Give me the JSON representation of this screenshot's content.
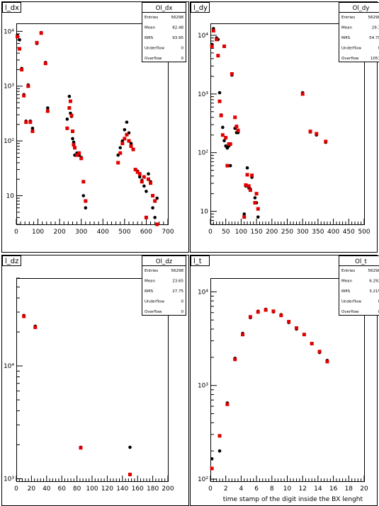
{
  "chart_data": [
    {
      "type": "scatter",
      "title": "l_dx",
      "xlabel": "",
      "ylabel": "",
      "xlim": [
        0,
        700
      ],
      "ylim": [
        3,
        14000
      ],
      "yscale": "log",
      "x_ticks": [
        0,
        100,
        200,
        300,
        400,
        500,
        600,
        700
      ],
      "y_ticks": [
        10,
        100,
        1000,
        10000
      ],
      "y_tick_labels": [
        "10",
        "10²",
        "10³",
        "10⁴"
      ],
      "stats": {
        "name": "Ol_dx",
        "rows": [
          {
            "label": "Entries",
            "value": "56298"
          },
          {
            "label": "Mean",
            "value": "82.48"
          },
          {
            "label": "RMS",
            "value": "93.95"
          },
          {
            "label": "Underflow",
            "value": "0"
          },
          {
            "label": "Overflow",
            "value": "0"
          }
        ]
      },
      "series": [
        {
          "color": "#000000",
          "x": [
            5,
            15,
            25,
            35,
            45,
            55,
            65,
            75,
            95,
            115,
            135,
            145,
            235,
            245,
            250,
            255,
            260,
            265,
            270,
            280,
            290,
            300,
            310,
            320,
            330,
            470,
            480,
            490,
            500,
            510,
            520,
            530,
            560,
            570,
            580,
            590,
            600,
            610,
            620,
            630,
            640,
            650
          ],
          "y": [
            8500,
            7000,
            2100,
            700,
            230,
            1050,
            230,
            170,
            6000,
            9500,
            2700,
            400,
            250,
            650,
            320,
            280,
            110,
            95,
            55,
            60,
            55,
            50,
            10,
            6,
            null,
            55,
            75,
            100,
            160,
            220,
            140,
            90,
            28,
            22,
            19,
            15,
            12,
            25,
            18,
            6,
            4,
            9
          ]
        },
        {
          "color": "#e00000",
          "x": [
            5,
            15,
            25,
            35,
            45,
            55,
            65,
            75,
            95,
            115,
            135,
            145,
            235,
            245,
            250,
            255,
            260,
            265,
            270,
            280,
            290,
            300,
            310,
            320,
            330,
            470,
            480,
            490,
            500,
            510,
            520,
            530,
            540,
            550,
            560,
            570,
            580,
            590,
            600,
            610,
            620,
            630,
            640,
            650
          ],
          "y": [
            8000,
            4800,
            2000,
            670,
            220,
            1000,
            220,
            150,
            6200,
            9300,
            2600,
            350,
            170,
            400,
            530,
            290,
            150,
            85,
            75,
            55,
            60,
            48,
            18,
            8,
            null,
            40,
            60,
            90,
            110,
            130,
            100,
            80,
            70,
            30,
            27,
            25,
            18,
            22,
            4,
            20,
            17,
            10,
            8,
            3
          ]
        }
      ]
    },
    {
      "type": "scatter",
      "title": "l_dy",
      "xlabel": "",
      "ylabel": "",
      "xlim": [
        0,
        500
      ],
      "ylim": [
        6,
        16000
      ],
      "yscale": "log",
      "x_ticks": [
        0,
        50,
        100,
        150,
        200,
        250,
        300,
        350,
        400,
        450,
        500
      ],
      "y_ticks": [
        10,
        100,
        1000,
        10000
      ],
      "y_tick_labels": [
        "10",
        "10²",
        "10³",
        "10⁴"
      ],
      "stats": {
        "name": "Ol_dy",
        "rows": [
          {
            "label": "Entries",
            "value": "56298"
          },
          {
            "label": "Mean",
            "value": "29.1"
          },
          {
            "label": "RMS",
            "value": "54.79"
          },
          {
            "label": "Underflow",
            "value": "0"
          },
          {
            "label": "Overflow",
            "value": "1051"
          }
        ]
      },
      "series": [
        {
          "color": "#000000",
          "x": [
            5,
            10,
            20,
            25,
            30,
            35,
            40,
            45,
            50,
            55,
            60,
            65,
            70,
            80,
            85,
            90,
            110,
            115,
            120,
            125,
            130,
            135,
            145,
            150,
            155,
            300,
            325,
            345,
            375
          ],
          "y": [
            7000,
            13000,
            9000,
            8500,
            1050,
            440,
            270,
            160,
            130,
            120,
            130,
            60,
            2100,
            260,
            220,
            220,
            9,
            27,
            55,
            25,
            24,
            38,
            17,
            14,
            8,
            1050,
            225,
            200,
            150
          ]
        },
        {
          "color": "#e00000",
          "x": [
            5,
            10,
            20,
            25,
            30,
            35,
            40,
            45,
            50,
            55,
            60,
            65,
            70,
            80,
            85,
            90,
            110,
            115,
            120,
            125,
            130,
            135,
            145,
            150,
            155,
            300,
            325,
            345,
            375
          ],
          "y": [
            6500,
            12000,
            8500,
            4500,
            750,
            430,
            200,
            6500,
            180,
            60,
            140,
            140,
            2200,
            400,
            280,
            240,
            8,
            28,
            42,
            27,
            23,
            41,
            14,
            20,
            11,
            1000,
            230,
            210,
            155
          ]
        }
      ]
    },
    {
      "type": "scatter",
      "title": "l_dz",
      "xlabel": "",
      "ylabel": "",
      "xlim": [
        0,
        200
      ],
      "ylim": [
        950,
        60000
      ],
      "yscale": "log",
      "x_ticks": [
        0,
        20,
        40,
        60,
        80,
        100,
        120,
        140,
        160,
        180,
        200
      ],
      "y_ticks": [
        1000,
        10000
      ],
      "y_tick_labels": [
        "10³",
        "10⁴"
      ],
      "stats": {
        "name": "Ol_dz",
        "rows": [
          {
            "label": "Entries",
            "value": "56298"
          },
          {
            "label": "Mean",
            "value": "23.65"
          },
          {
            "label": "RMS",
            "value": "27.75"
          },
          {
            "label": "Underflow",
            "value": "0"
          },
          {
            "label": "Overflow",
            "value": "0"
          }
        ]
      },
      "series": [
        {
          "color": "#000000",
          "x": [
            10,
            25,
            85,
            150
          ],
          "y": [
            28000,
            22500,
            1900,
            1900
          ]
        },
        {
          "color": "#e00000",
          "x": [
            10,
            25,
            85,
            150
          ],
          "y": [
            27500,
            22000,
            1880,
            1090
          ]
        }
      ]
    },
    {
      "type": "scatter",
      "title": "l_t",
      "xlabel": "time stamp of the digit inside the BX lenght",
      "ylabel": "",
      "xlim": [
        0,
        20
      ],
      "ylim": [
        95,
        14000
      ],
      "yscale": "log",
      "x_ticks": [
        0,
        2,
        4,
        6,
        8,
        10,
        12,
        14,
        16,
        18,
        20
      ],
      "y_ticks": [
        100,
        1000,
        10000
      ],
      "y_tick_labels": [
        "10²",
        "10³",
        "10⁴"
      ],
      "stats": {
        "name": "Ol_t",
        "rows": [
          {
            "label": "Entries",
            "value": "56298"
          },
          {
            "label": "Mean",
            "value": "6.292"
          },
          {
            "label": "RMS",
            "value": "3.215"
          },
          {
            "label": "Underflow",
            "value": "0"
          },
          {
            "label": "Overflow",
            "value": "0"
          }
        ]
      },
      "series": [
        {
          "color": "#000000",
          "x": [
            0.2,
            1.2,
            2.2,
            3.2,
            4.2,
            5.2,
            6.2,
            7.2,
            8.2,
            9.2,
            10.2,
            11.2,
            12.2,
            13.2,
            14.2,
            15.2
          ],
          "y": [
            165,
            200,
            650,
            1950,
            3600,
            5300,
            6200,
            6500,
            6100,
            5700,
            4700,
            4000,
            3500,
            2800,
            2250,
            1850
          ]
        },
        {
          "color": "#e00000",
          "x": [
            0.2,
            1.2,
            2.2,
            3.2,
            4.2,
            5.2,
            6.2,
            7.2,
            8.2,
            9.2,
            10.2,
            11.2,
            12.2,
            13.2,
            14.2,
            15.2
          ],
          "y": [
            130,
            290,
            630,
            1900,
            3500,
            5400,
            6100,
            6400,
            6200,
            5600,
            4800,
            4100,
            3500,
            2800,
            2300,
            1800
          ]
        }
      ]
    }
  ]
}
